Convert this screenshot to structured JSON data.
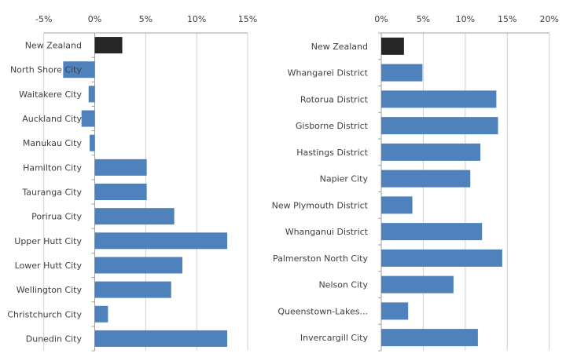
{
  "colors": {
    "highlight": "#262626",
    "bar": "#4f81bd",
    "grid": "#d0d0d0",
    "axis": "#a0a0a0"
  },
  "chart_data": [
    {
      "type": "bar",
      "orientation": "horizontal",
      "title": "",
      "xlabel": "",
      "ylabel": "",
      "xlim": [
        -5,
        15
      ],
      "x_ticks": [
        -5,
        0,
        5,
        10,
        15
      ],
      "tick_labels": [
        "-5%",
        "0%",
        "5%",
        "10%",
        "15%"
      ],
      "grid": true,
      "categories": [
        "New Zealand",
        "North Shore City",
        "Waitakere City",
        "Auckland City",
        "Manukau City",
        "Hamilton City",
        "Tauranga City",
        "Porirua City",
        "Upper Hutt City",
        "Lower Hutt City",
        "Wellington City",
        "Christchurch City",
        "Dunedin City"
      ],
      "values": [
        2.7,
        -3.1,
        -0.6,
        -1.3,
        -0.5,
        5.1,
        5.1,
        7.8,
        13.0,
        8.6,
        7.5,
        1.3,
        13.0
      ],
      "unit": "%"
    },
    {
      "type": "bar",
      "orientation": "horizontal",
      "title": "",
      "xlabel": "",
      "ylabel": "",
      "xlim": [
        0,
        20
      ],
      "x_ticks": [
        0,
        5,
        10,
        15,
        20
      ],
      "tick_labels": [
        "0%",
        "5%",
        "10%",
        "15%",
        "20%"
      ],
      "grid": true,
      "categories": [
        "New Zealand",
        "Whangarei District",
        "Rotorua District",
        "Gisborne District",
        "Hastings District",
        "Napier City",
        "New Plymouth District",
        "Whanganui District",
        "Palmerston North City",
        "Nelson City",
        "Queenstown-Lakes...",
        "Invercargill City"
      ],
      "values": [
        2.7,
        4.9,
        13.7,
        13.9,
        11.8,
        10.6,
        3.7,
        12.0,
        14.4,
        8.6,
        3.2,
        11.5
      ],
      "unit": "%"
    }
  ]
}
